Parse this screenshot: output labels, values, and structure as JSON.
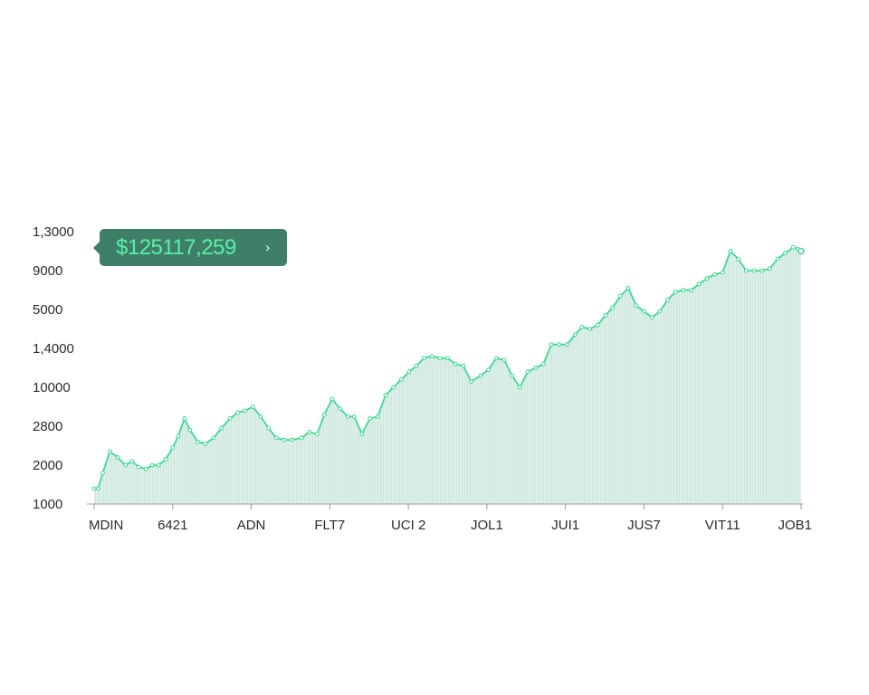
{
  "tooltip": {
    "value": "$125117,259",
    "chevron_icon": "chevron-right-icon"
  },
  "colors": {
    "line": "#3fd98e",
    "area": "#d4ebe4",
    "tooltip_bg": "#3f7f67",
    "tooltip_text": "#58f1a8",
    "axis": "#9a9a9a"
  },
  "chart_data": {
    "type": "area",
    "y_tick_labels": [
      "1000",
      "2000",
      "2800",
      "10000",
      "1,4000",
      "5000",
      "9000",
      "1,3000"
    ],
    "x_tick_labels": [
      "MDIN",
      "6421",
      "ADN",
      "FLT7",
      "UCI 2",
      "JOL1",
      "JUI1",
      "JUS7",
      "VIT11",
      "JOB1"
    ],
    "y_positions": [
      0,
      1,
      2,
      3,
      4,
      5,
      6,
      7
    ],
    "ylim": [
      0,
      7
    ],
    "xlim": [
      0,
      9
    ],
    "series": [
      {
        "x": [
          0,
          0.05,
          0.11,
          0.2,
          0.3,
          0.4,
          0.48,
          0.57,
          0.66,
          0.74,
          0.82,
          0.91,
          1.0,
          1.07,
          1.15,
          1.22,
          1.32,
          1.42,
          1.52,
          1.62,
          1.73,
          1.83,
          1.92,
          2.02,
          2.12,
          2.22,
          2.32,
          2.42,
          2.52,
          2.64,
          2.74,
          2.84,
          2.93,
          3.03,
          3.13,
          3.23,
          3.31,
          3.41,
          3.51,
          3.61,
          3.71,
          3.81,
          3.91,
          4.01,
          4.1,
          4.2,
          4.3,
          4.4,
          4.5,
          4.6,
          4.7,
          4.8,
          4.92,
          5.02,
          5.12,
          5.22,
          5.32,
          5.42,
          5.52,
          5.62,
          5.72,
          5.82,
          5.92,
          6.02,
          6.12,
          6.21,
          6.31,
          6.41,
          6.51,
          6.6,
          6.7,
          6.8,
          6.9,
          7.0,
          7.1,
          7.2,
          7.3,
          7.4,
          7.5,
          7.6,
          7.7,
          7.8,
          7.9,
          8.0,
          8.1,
          8.2,
          8.3,
          8.4,
          8.5,
          8.6,
          8.7,
          8.8,
          8.9,
          8.96,
          9.0
        ],
        "y": [
          0.4,
          0.4,
          0.8,
          1.35,
          1.2,
          1.0,
          1.1,
          0.95,
          0.9,
          1.0,
          1.0,
          1.15,
          1.45,
          1.75,
          2.2,
          1.9,
          1.6,
          1.55,
          1.7,
          1.95,
          2.2,
          2.35,
          2.4,
          2.5,
          2.25,
          1.95,
          1.7,
          1.65,
          1.65,
          1.7,
          1.85,
          1.8,
          2.3,
          2.7,
          2.45,
          2.25,
          2.25,
          1.8,
          2.2,
          2.25,
          2.8,
          3.0,
          3.2,
          3.4,
          3.55,
          3.75,
          3.8,
          3.75,
          3.75,
          3.6,
          3.55,
          3.15,
          3.3,
          3.45,
          3.75,
          3.7,
          3.3,
          3.0,
          3.4,
          3.5,
          3.6,
          4.1,
          4.1,
          4.1,
          4.35,
          4.55,
          4.5,
          4.6,
          4.85,
          5.05,
          5.35,
          5.55,
          5.1,
          4.95,
          4.8,
          4.95,
          5.25,
          5.45,
          5.5,
          5.5,
          5.65,
          5.8,
          5.9,
          5.95,
          6.5,
          6.3,
          6.0,
          6.0,
          6.0,
          6.05,
          6.3,
          6.45,
          6.6,
          6.55,
          6.5
        ]
      }
    ],
    "grid": false,
    "legend": "none"
  }
}
